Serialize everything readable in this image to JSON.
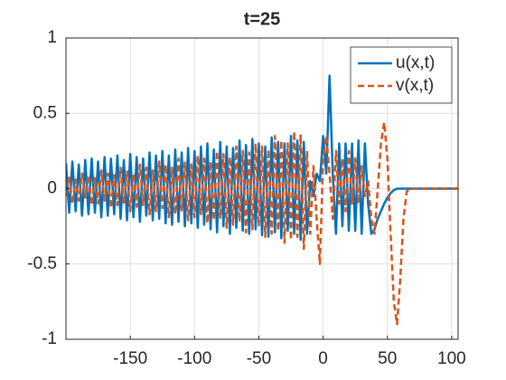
{
  "chart_data": {
    "type": "line",
    "title": "t=25",
    "x": [
      -200,
      -197.5,
      -195,
      -192.5,
      -190,
      -187.5,
      -185,
      -182.5,
      -180,
      -177.5,
      -175,
      -172.5,
      -170,
      -167.5,
      -165,
      -162.5,
      -160,
      -157.5,
      -155,
      -152.5,
      -150,
      -147.5,
      -145,
      -142.5,
      -140,
      -137.5,
      -135,
      -132.5,
      -130,
      -127.5,
      -125,
      -122.5,
      -120,
      -117.5,
      -115,
      -112.5,
      -110,
      -107.5,
      -105,
      -102.5,
      -100,
      -97.5,
      -95,
      -92.5,
      -90,
      -87.5,
      -85,
      -82.5,
      -80,
      -77.5,
      -75,
      -72.5,
      -70,
      -67.5,
      -65,
      -62.5,
      -60,
      -57.5,
      -55,
      -52.5,
      -50,
      -47.5,
      -45,
      -42.5,
      -40,
      -37.5,
      -35,
      -32.5,
      -30,
      -27.5,
      -25,
      -22.5,
      -20,
      -17.5,
      -15,
      -12.5,
      -10,
      -7.5,
      -5,
      -2.5,
      0,
      2.5,
      5,
      7.5,
      10,
      12.5,
      15,
      17.5,
      20,
      22.5,
      25,
      27.5,
      30,
      32.5,
      35,
      37.5,
      40,
      42.5,
      45,
      47.5,
      50,
      52.5,
      55,
      57.5,
      60,
      62.5,
      65,
      67.5,
      70,
      75,
      80,
      85,
      90,
      95,
      100,
      105
    ],
    "series": [
      {
        "name": "u(x,t)",
        "color": "#0072BD",
        "linestyle": "solid",
        "values": [
          0.17,
          -0.16,
          0.18,
          -0.15,
          0.16,
          -0.18,
          0.19,
          -0.17,
          0.2,
          -0.16,
          0.18,
          -0.19,
          0.21,
          -0.18,
          0.2,
          -0.17,
          0.22,
          -0.2,
          0.19,
          -0.21,
          0.23,
          -0.19,
          0.21,
          -0.22,
          0.2,
          -0.18,
          0.24,
          -0.21,
          0.22,
          -0.2,
          0.25,
          -0.23,
          0.22,
          -0.24,
          0.26,
          -0.22,
          0.24,
          -0.25,
          0.27,
          -0.23,
          0.25,
          -0.26,
          0.28,
          -0.24,
          0.3,
          -0.27,
          0.26,
          -0.29,
          0.31,
          -0.25,
          0.28,
          -0.3,
          0.27,
          -0.26,
          0.32,
          -0.28,
          0.29,
          -0.3,
          0.33,
          -0.27,
          0.3,
          -0.31,
          0.28,
          -0.32,
          0.34,
          -0.29,
          0.31,
          -0.33,
          0.3,
          -0.28,
          0.35,
          -0.3,
          0.32,
          -0.34,
          0.31,
          -0.3,
          0.05,
          -0.05,
          0.1,
          0.05,
          0.35,
          0.1,
          0.75,
          0.1,
          -0.3,
          0.3,
          -0.25,
          0.3,
          -0.28,
          0.3,
          -0.28,
          0.32,
          -0.3,
          0.3,
          -0.1,
          -0.3,
          -0.27,
          -0.2,
          -0.15,
          -0.1,
          -0.06,
          -0.03,
          -0.01,
          0,
          0,
          0,
          0,
          0,
          0,
          0,
          0,
          0,
          0,
          0,
          0,
          0
        ]
      },
      {
        "name": "v(x,t)",
        "color": "#D95319",
        "linestyle": "dashed",
        "values": [
          -0.05,
          0.08,
          -0.1,
          0.06,
          -0.08,
          0.1,
          -0.06,
          0.09,
          -0.11,
          0.07,
          -0.1,
          0.12,
          -0.08,
          0.1,
          -0.13,
          0.09,
          -0.11,
          0.14,
          -0.1,
          0.12,
          -0.15,
          0.1,
          -0.12,
          0.16,
          -0.11,
          0.14,
          -0.17,
          0.12,
          -0.15,
          0.18,
          -0.13,
          0.16,
          -0.19,
          0.14,
          -0.17,
          0.2,
          -0.15,
          0.18,
          -0.21,
          0.16,
          -0.19,
          0.22,
          -0.17,
          0.2,
          -0.23,
          0.18,
          -0.21,
          0.25,
          -0.2,
          0.23,
          -0.26,
          0.21,
          -0.24,
          0.28,
          -0.22,
          0.25,
          -0.29,
          0.24,
          -0.27,
          0.3,
          -0.25,
          0.28,
          -0.32,
          0.26,
          -0.3,
          0.35,
          -0.28,
          0.32,
          -0.36,
          0.3,
          -0.34,
          0.38,
          -0.32,
          0.36,
          -0.4,
          0.25,
          -0.3,
          0.15,
          -0.2,
          -0.5,
          0.2,
          0.35,
          0.1,
          -0.2,
          0.25,
          -0.1,
          0.2,
          -0.15,
          0.25,
          -0.1,
          0.2,
          -0.1,
          0.15,
          -0.05,
          0.05,
          -0.2,
          -0.3,
          0,
          0.3,
          0.44,
          0.2,
          -0.3,
          -0.75,
          -0.9,
          -0.6,
          -0.2,
          -0.02,
          0,
          0,
          0,
          0,
          0,
          0,
          0,
          0,
          0
        ]
      }
    ],
    "xlim": [
      -200,
      105
    ],
    "ylim": [
      -1,
      1
    ],
    "xticks": [
      -150,
      -100,
      -50,
      0,
      50,
      100
    ],
    "yticks": [
      -1,
      -0.5,
      0,
      0.5,
      1
    ],
    "grid": true,
    "legend": "northeast"
  }
}
